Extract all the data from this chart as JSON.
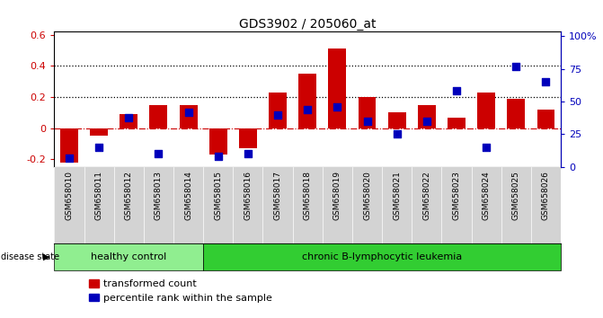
{
  "title": "GDS3902 / 205060_at",
  "samples": [
    "GSM658010",
    "GSM658011",
    "GSM658012",
    "GSM658013",
    "GSM658014",
    "GSM658015",
    "GSM658016",
    "GSM658017",
    "GSM658018",
    "GSM658019",
    "GSM658020",
    "GSM658021",
    "GSM658022",
    "GSM658023",
    "GSM658024",
    "GSM658025",
    "GSM658026"
  ],
  "bar_values": [
    -0.22,
    -0.05,
    0.09,
    0.15,
    0.15,
    -0.17,
    -0.13,
    0.23,
    0.35,
    0.51,
    0.2,
    0.1,
    0.15,
    0.07,
    0.23,
    0.19,
    0.12
  ],
  "scatter_values": [
    0.07,
    0.15,
    0.38,
    0.1,
    0.42,
    0.08,
    0.1,
    0.4,
    0.44,
    0.46,
    0.35,
    0.25,
    0.35,
    0.58,
    0.15,
    0.77,
    0.65
  ],
  "bar_color": "#cc0000",
  "scatter_color": "#0000bb",
  "ylim_left": [
    -0.25,
    0.62
  ],
  "ylim_right": [
    0,
    1.033
  ],
  "yticks_left": [
    -0.2,
    0.0,
    0.2,
    0.4,
    0.6
  ],
  "ytick_labels_left": [
    "-0.2",
    "0",
    "0.2",
    "0.4",
    "0.6"
  ],
  "yticks_right": [
    0,
    0.25,
    0.5,
    0.75,
    1.0
  ],
  "ytick_labels_right": [
    "0",
    "25",
    "50",
    "75",
    "100%"
  ],
  "hlines": [
    0.2,
    0.4
  ],
  "healthy_count": 5,
  "group1_label": "healthy control",
  "group2_label": "chronic B-lymphocytic leukemia",
  "disease_state_label": "disease state",
  "legend1": "transformed count",
  "legend2": "percentile rank within the sample",
  "group1_color": "#90ee90",
  "group2_color": "#32cd32",
  "xticklabel_bg": "#d3d3d3"
}
